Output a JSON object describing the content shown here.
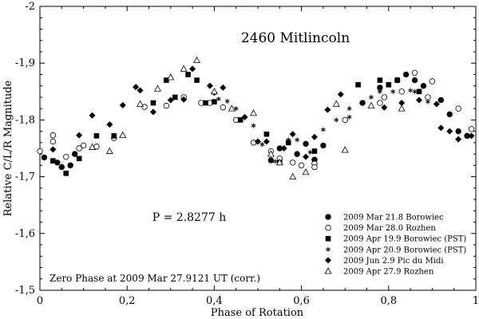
{
  "chart_data": {
    "type": "scatter",
    "title": "2460 Mitlincoln",
    "xlabel": "Phase of Rotation",
    "ylabel": "Relative C/L/R Magnitude",
    "xlim": [
      0,
      1
    ],
    "ylim": [
      -1.5,
      -2.0
    ],
    "y_inverted": true,
    "xticks": [
      0,
      0.2,
      0.4,
      0.6,
      0.8,
      1
    ],
    "xtick_labels": [
      "0",
      "0,2",
      "0,4",
      "0,6",
      "0,8",
      "1"
    ],
    "yticks": [
      -1.5,
      -1.6,
      -1.7,
      -1.8,
      -1.9,
      -2.0
    ],
    "ytick_labels": [
      "-1,5",
      "-1,6",
      "-1,7",
      "-1,8",
      "-1,9",
      "-2"
    ],
    "period_label": "P = 2.8277 h",
    "zero_phase_label": "Zero Phase at 2009 Mar 27.9121 UT (corr.)",
    "legend_position": "bottom-right",
    "series": [
      {
        "name": "2009 Mar 21.8 Borowiec",
        "marker": "circle-filled",
        "points": [
          [
            0.01,
            -1.734
          ],
          [
            0.04,
            -1.725
          ],
          [
            0.05,
            -1.717
          ],
          [
            0.07,
            -1.72
          ],
          [
            0.08,
            -1.74
          ],
          [
            0.53,
            -1.729
          ],
          [
            0.55,
            -1.75
          ],
          [
            0.59,
            -1.74
          ],
          [
            0.61,
            -1.758
          ],
          [
            0.63,
            -1.73
          ],
          [
            0.65,
            -1.755
          ],
          [
            0.74,
            -1.83
          ],
          [
            0.78,
            -1.857
          ],
          [
            0.82,
            -1.87
          ],
          [
            0.84,
            -1.88
          ],
          [
            0.86,
            -1.87
          ],
          [
            0.88,
            -1.86
          ],
          [
            0.92,
            -1.835
          ],
          [
            0.94,
            -1.81
          ],
          [
            0.96,
            -1.78
          ],
          [
            0.98,
            -1.772
          ]
        ]
      },
      {
        "name": "2009 Mar 28.0 Rozhen",
        "marker": "circle-open",
        "points": [
          [
            0.0,
            -1.745
          ],
          [
            0.03,
            -1.773
          ],
          [
            0.03,
            -1.762
          ],
          [
            0.06,
            -1.735
          ],
          [
            0.09,
            -1.75
          ],
          [
            0.1,
            -1.755
          ],
          [
            0.13,
            -1.753
          ],
          [
            0.17,
            -1.768
          ],
          [
            0.24,
            -1.823
          ],
          [
            0.29,
            -1.825
          ],
          [
            0.33,
            -1.84
          ],
          [
            0.37,
            -1.83
          ],
          [
            0.39,
            -1.83
          ],
          [
            0.42,
            -1.822
          ],
          [
            0.45,
            -1.8
          ],
          [
            0.49,
            -1.76
          ],
          [
            0.53,
            -1.745
          ],
          [
            0.55,
            -1.732
          ],
          [
            0.58,
            -1.725
          ],
          [
            0.6,
            -1.72
          ],
          [
            0.63,
            -1.723
          ],
          [
            0.63,
            -1.717
          ],
          [
            0.7,
            -1.8
          ],
          [
            0.78,
            -1.83
          ],
          [
            0.79,
            -1.84
          ],
          [
            0.83,
            -1.85
          ],
          [
            0.86,
            -1.883
          ],
          [
            0.89,
            -1.84
          ],
          [
            0.9,
            -1.868
          ],
          [
            0.96,
            -1.82
          ],
          [
            0.99,
            -1.784
          ]
        ]
      },
      {
        "name": "2009 Apr 19.9 Borowiec (PST)",
        "marker": "square-filled",
        "points": [
          [
            0.03,
            -1.728
          ],
          [
            0.06,
            -1.706
          ],
          [
            0.09,
            -1.732
          ],
          [
            0.13,
            -1.772
          ],
          [
            0.17,
            -1.772
          ],
          [
            0.26,
            -1.83
          ],
          [
            0.29,
            -1.87
          ],
          [
            0.31,
            -1.84
          ],
          [
            0.34,
            -1.88
          ],
          [
            0.36,
            -1.87
          ],
          [
            0.38,
            -1.83
          ],
          [
            0.4,
            -1.832
          ],
          [
            0.46,
            -1.8
          ],
          [
            0.52,
            -1.775
          ],
          [
            0.55,
            -1.725
          ],
          [
            0.57,
            -1.76
          ],
          [
            0.63,
            -1.745
          ],
          [
            0.73,
            -1.862
          ],
          [
            0.78,
            -1.87
          ],
          [
            0.8,
            -1.862
          ],
          [
            0.82,
            -1.87
          ],
          [
            0.87,
            -1.85
          ]
        ]
      },
      {
        "name": "2009 Apr 20.9 Borowiec (PST)",
        "marker": "asterisk",
        "points": [
          [
            0.41,
            -1.837
          ],
          [
            0.43,
            -1.833
          ],
          [
            0.45,
            -1.82
          ],
          [
            0.49,
            -1.79
          ],
          [
            0.51,
            -1.757
          ],
          [
            0.54,
            -1.727
          ],
          [
            0.57,
            -1.765
          ],
          [
            0.59,
            -1.765
          ],
          [
            0.62,
            -1.743
          ],
          [
            0.65,
            -1.783
          ],
          [
            0.68,
            -1.8
          ],
          [
            0.71,
            -1.805
          ],
          [
            0.71,
            -1.82
          ],
          [
            0.74,
            -1.83
          ],
          [
            0.76,
            -1.84
          ],
          [
            0.78,
            -1.85
          ],
          [
            0.81,
            -1.85
          ],
          [
            0.85,
            -1.852
          ],
          [
            0.86,
            -1.85
          ],
          [
            0.89,
            -1.832
          ]
        ]
      },
      {
        "name": "2009 Jun 2.9 Pic du Midi",
        "marker": "diamond-filled",
        "points": [
          [
            0.03,
            -1.748
          ],
          [
            0.09,
            -1.773
          ],
          [
            0.12,
            -1.808
          ],
          [
            0.16,
            -1.792
          ],
          [
            0.19,
            -1.826
          ],
          [
            0.22,
            -1.858
          ],
          [
            0.23,
            -1.852
          ],
          [
            0.26,
            -1.814
          ],
          [
            0.3,
            -1.835
          ],
          [
            0.33,
            -1.836
          ],
          [
            0.35,
            -1.89
          ],
          [
            0.39,
            -1.86
          ],
          [
            0.4,
            -1.848
          ],
          [
            0.42,
            -1.857
          ],
          [
            0.47,
            -1.805
          ],
          [
            0.5,
            -1.762
          ],
          [
            0.52,
            -1.762
          ],
          [
            0.56,
            -1.75
          ],
          [
            0.58,
            -1.775
          ],
          [
            0.61,
            -1.735
          ],
          [
            0.63,
            -1.77
          ],
          [
            0.66,
            -1.818
          ],
          [
            0.69,
            -1.845
          ],
          [
            0.79,
            -1.822
          ],
          [
            0.83,
            -1.83
          ],
          [
            0.87,
            -1.835
          ],
          [
            0.91,
            -1.828
          ],
          [
            0.92,
            -1.786
          ],
          [
            0.94,
            -1.78
          ],
          [
            0.96,
            -1.766
          ],
          [
            0.99,
            -1.772
          ]
        ]
      },
      {
        "name": "2009 Apr 27.9 Rozhen",
        "marker": "triangle-open",
        "points": [
          [
            0.12,
            -1.752
          ],
          [
            0.16,
            -1.745
          ],
          [
            0.19,
            -1.773
          ],
          [
            0.23,
            -1.828
          ],
          [
            0.27,
            -1.855
          ],
          [
            0.3,
            -1.875
          ],
          [
            0.33,
            -1.89
          ],
          [
            0.36,
            -1.905
          ],
          [
            0.4,
            -1.85
          ],
          [
            0.44,
            -1.82
          ],
          [
            0.49,
            -1.812
          ],
          [
            0.53,
            -1.74
          ],
          [
            0.55,
            -1.725
          ],
          [
            0.58,
            -1.7
          ],
          [
            0.61,
            -1.708
          ],
          [
            0.68,
            -1.828
          ],
          [
            0.7,
            -1.747
          ],
          [
            0.76,
            -1.825
          ],
          [
            0.83,
            -1.82
          ]
        ]
      }
    ]
  }
}
